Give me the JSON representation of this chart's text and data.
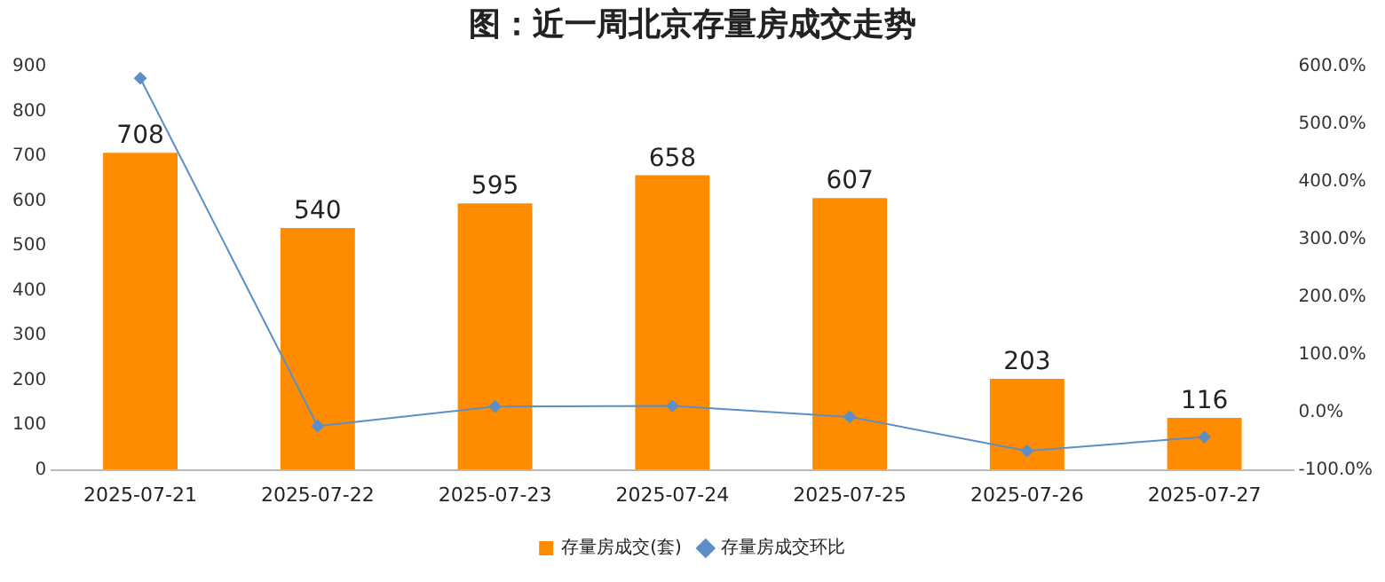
{
  "chart_data": {
    "type": "bar",
    "title": "图：近一周北京存量房成交走势",
    "categories": [
      "2025-07-21",
      "2025-07-22",
      "2025-07-23",
      "2025-07-24",
      "2025-07-25",
      "2025-07-26",
      "2025-07-27"
    ],
    "series": [
      {
        "name": "存量房成交(套)",
        "color": "#ff8c00",
        "values": [
          708,
          540,
          595,
          658,
          607,
          203,
          116
        ],
        "value_labels": [
          "708",
          "540",
          "595",
          "658",
          "607",
          "203",
          "116"
        ]
      },
      {
        "name": "存量房成交环比",
        "type": "line",
        "axis": "y2",
        "color": "#5b8fc7",
        "marker": "diamond",
        "values": [
          580,
          -24,
          10,
          11,
          -8,
          -67,
          -43
        ]
      }
    ],
    "ylim": [
      0,
      900
    ],
    "yticks": [
      0,
      100,
      200,
      300,
      400,
      500,
      600,
      700,
      800,
      900
    ],
    "y2lim": [
      -100,
      600
    ],
    "y2ticks": [
      {
        "value": -100,
        "label": "-100.0%"
      },
      {
        "value": 0,
        "label": "0.0%"
      },
      {
        "value": 100,
        "label": "100.0%"
      },
      {
        "value": 200,
        "label": "200.0%"
      },
      {
        "value": 300,
        "label": "300.0%"
      },
      {
        "value": 400,
        "label": "400.0%"
      },
      {
        "value": 500,
        "label": "500.0%"
      },
      {
        "value": 600,
        "label": "600.0%"
      }
    ],
    "grid": false,
    "legend": "bottom"
  }
}
